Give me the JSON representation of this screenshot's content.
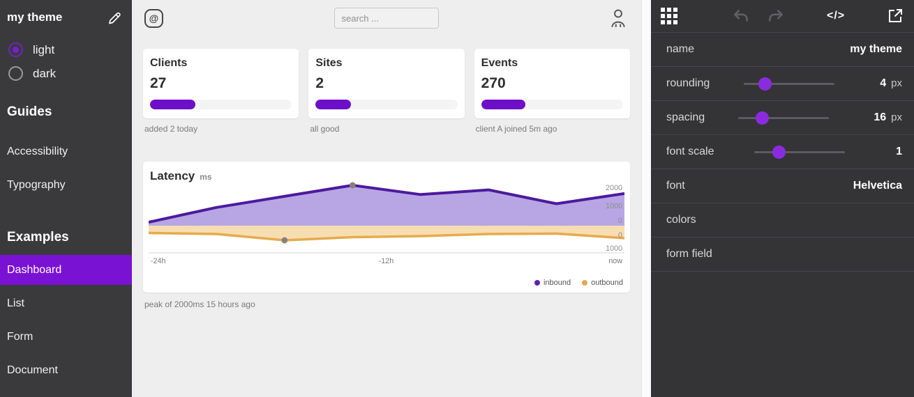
{
  "sidebar": {
    "title": "my theme",
    "edit_icon": "pencil-icon",
    "theme_options": [
      {
        "label": "light",
        "selected": true
      },
      {
        "label": "dark",
        "selected": false
      }
    ],
    "sections": [
      {
        "heading": "Guides",
        "items": [
          {
            "label": "Accessibility"
          },
          {
            "label": "Typography"
          }
        ]
      },
      {
        "heading": "Examples",
        "items": [
          {
            "label": "Dashboard",
            "active": true
          },
          {
            "label": "List"
          },
          {
            "label": "Form"
          },
          {
            "label": "Document"
          }
        ]
      }
    ]
  },
  "preview": {
    "header": {
      "logo_glyph": "@",
      "search_placeholder": "search ...",
      "user_icon": "person-icon"
    },
    "cards": [
      {
        "title": "Clients",
        "value": "27",
        "progress_pct": 32,
        "caption": "added 2 today"
      },
      {
        "title": "Sites",
        "value": "2",
        "progress_pct": 25,
        "caption": "all good"
      },
      {
        "title": "Events",
        "value": "270",
        "progress_pct": 31,
        "caption": "client A joined 5m ago"
      }
    ],
    "chart_card": {
      "title": "Latency",
      "unit": "ms",
      "caption": "peak of 2000ms 15 hours ago",
      "legend": [
        {
          "label": "inbound",
          "color": "#5b21b6"
        },
        {
          "label": "outbound",
          "color": "#e2a94e"
        }
      ]
    }
  },
  "chart_data": {
    "type": "area",
    "title": "Latency (ms)",
    "x_tick_labels": [
      "-24h",
      "-12h",
      "now"
    ],
    "x_range_hours": [
      -24,
      0
    ],
    "series": [
      {
        "name": "inbound",
        "color": "#4c1a9e",
        "fill": "#b7a6e3",
        "values": [
          0,
          800,
          1400,
          2000,
          1500,
          1750,
          1000,
          1550
        ],
        "y_ticks": [
          0,
          1000,
          2000
        ],
        "axis_inverted": false
      },
      {
        "name": "outbound",
        "color": "#e5ab4c",
        "fill": "#f7ddb2",
        "values": [
          350,
          400,
          700,
          550,
          500,
          400,
          380,
          600
        ],
        "y_ticks": [
          0,
          1000
        ],
        "axis_inverted": true
      }
    ],
    "y_axis_labels": [
      "2000",
      "1000",
      "0",
      "0",
      "1000"
    ],
    "markers": [
      {
        "series": "inbound",
        "index": 3
      },
      {
        "series": "outbound",
        "index": 2
      }
    ],
    "legend_position": "bottom-right",
    "annotation": "peak of 2000ms 15 hours ago"
  },
  "panel": {
    "toolbar": {
      "icons": [
        "apps-grid-icon",
        "undo-icon",
        "redo-icon",
        "code-icon",
        "open-external-icon"
      ],
      "code_glyph": "</>"
    },
    "rows": [
      {
        "label": "name",
        "value": "my theme",
        "unit": "",
        "type": "text"
      },
      {
        "label": "rounding",
        "value": "4",
        "unit": "px",
        "type": "slider",
        "pct": 23
      },
      {
        "label": "spacing",
        "value": "16",
        "unit": "px",
        "type": "slider",
        "pct": 26
      },
      {
        "label": "font scale",
        "value": "1",
        "unit": "",
        "type": "slider",
        "pct": 27
      },
      {
        "label": "font",
        "value": "Helvetica",
        "unit": "",
        "type": "text"
      },
      {
        "label": "colors",
        "value": "",
        "unit": "",
        "type": "expand"
      },
      {
        "label": "form field",
        "value": "",
        "unit": "",
        "type": "expand"
      }
    ]
  },
  "colors": {
    "accent": "#7a12d4",
    "progress_fill": "#6d0fc8",
    "slider_thumb": "#8b2be0",
    "inbound_line": "#4c1a9e",
    "inbound_fill": "#b7a6e3",
    "outbound_line": "#e5ab4c",
    "outbound_fill": "#f7ddb2",
    "sidebar_bg": "#3a3a3c",
    "panel_bg": "#343437",
    "preview_bg": "#eeeeee"
  }
}
